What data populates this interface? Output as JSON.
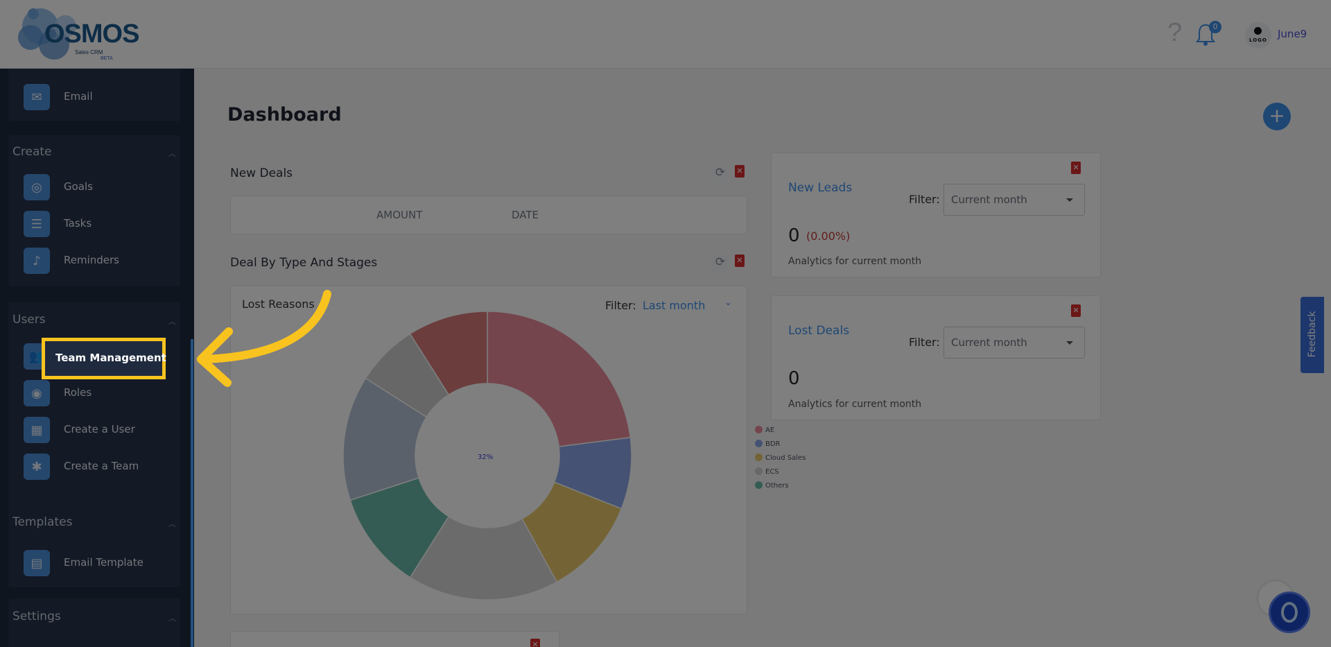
{
  "header": {
    "logo_text": "OSMOS",
    "logo_sub": "Sales CRM",
    "logo_beta": "BETA",
    "help_icon": "question-icon",
    "bell_icon": "bell-icon",
    "notification_count": "0",
    "avatar_label": "LOGO",
    "username": "June9"
  },
  "sidebar": {
    "top_item": {
      "label": "Email",
      "icon": "envelope-icon"
    },
    "sections": [
      {
        "title": "Create",
        "items": [
          {
            "label": "Goals",
            "icon": "target-icon"
          },
          {
            "label": "Tasks",
            "icon": "checklist-icon"
          },
          {
            "label": "Reminders",
            "icon": "bell-icon"
          }
        ]
      },
      {
        "title": "Users",
        "items": [
          {
            "label": "Team Management",
            "icon": "team-icon"
          },
          {
            "label": "Roles",
            "icon": "roles-icon"
          },
          {
            "label": "Create a User",
            "icon": "grid-icon"
          },
          {
            "label": "Create a Team",
            "icon": "group-icon"
          }
        ]
      },
      {
        "title": "Templates",
        "items": [
          {
            "label": "Email Template",
            "icon": "document-icon"
          }
        ]
      },
      {
        "title": "Settings",
        "items": []
      }
    ]
  },
  "main": {
    "title": "Dashboard",
    "new_deals": {
      "title": "New Deals",
      "columns": [
        "AMOUNT",
        "DATE"
      ]
    },
    "deal_by_type": {
      "title": "Deal By Type And Stages",
      "subtitle": "Lost Reasons",
      "filter_label": "Filter:",
      "filter_value": "Last month",
      "center_label": "32%"
    },
    "new_leads": {
      "title": "New Leads",
      "filter_label": "Filter:",
      "filter_value": "Current month",
      "value": "0",
      "change": "(0.00%)",
      "note": "Analytics for current month"
    },
    "lost_deals": {
      "title": "Lost Deals",
      "filter_label": "Filter:",
      "filter_value": "Current month",
      "value": "0",
      "note": "Analytics for current month"
    }
  },
  "chart_data": {
    "type": "pie",
    "subtitle": "Lost Reasons",
    "categories": [
      "AE",
      "BDR",
      "Cloud Sales",
      "ECS",
      "Others"
    ],
    "legend_colors": [
      "#e98b9a",
      "#8aa4e6",
      "#e8c96a",
      "#d0d0d0",
      "#6bb8a8"
    ],
    "slices": [
      {
        "value": 23,
        "color": "#e98b9a"
      },
      {
        "value": 8,
        "color": "#8aa4e6"
      },
      {
        "value": 11,
        "color": "#e8c96a"
      },
      {
        "value": 17,
        "color": "#d6d6d6"
      },
      {
        "value": 11,
        "color": "#6bb8a8"
      },
      {
        "value": 14,
        "color": "#b7c2d6"
      },
      {
        "value": 7,
        "color": "#cfcfcf"
      },
      {
        "value": 9,
        "color": "#d67a7a"
      }
    ],
    "center_label": "32%",
    "legend_position": "right"
  },
  "feedback_label": "Feedback"
}
